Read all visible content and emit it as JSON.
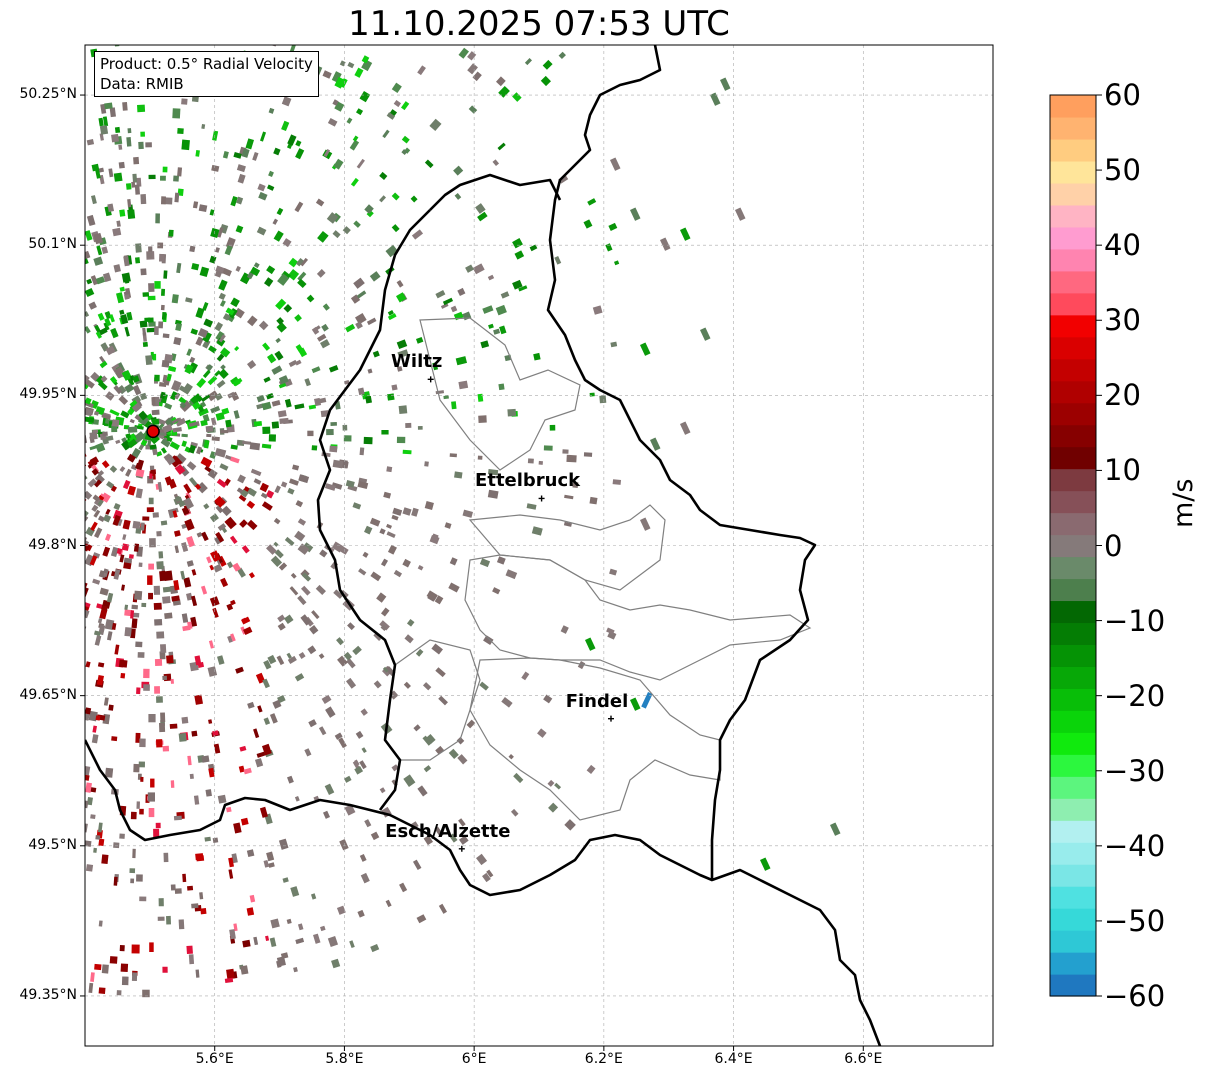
{
  "title": "11.10.2025 07:53 UTC",
  "info": {
    "product": "Product: 0.5° Radial Velocity",
    "source": "Data: RMIB"
  },
  "map": {
    "lon_range": [
      5.4,
      6.8
    ],
    "lat_range": [
      49.3,
      50.3
    ],
    "lat_ticks": [
      {
        "value": 50.25,
        "label": "50.25°N"
      },
      {
        "value": 50.1,
        "label": "50.1°N"
      },
      {
        "value": 49.95,
        "label": "49.95°N"
      },
      {
        "value": 49.8,
        "label": "49.8°N"
      },
      {
        "value": 49.65,
        "label": "49.65°N"
      },
      {
        "value": 49.5,
        "label": "49.5°N"
      },
      {
        "value": 49.35,
        "label": "49.35°N"
      }
    ],
    "lon_ticks": [
      {
        "value": 5.6,
        "label": "5.6°E"
      },
      {
        "value": 5.8,
        "label": "5.8°E"
      },
      {
        "value": 6.0,
        "label": "6°E"
      },
      {
        "value": 6.2,
        "label": "6.2°E"
      },
      {
        "value": 6.4,
        "label": "6.4°E"
      },
      {
        "value": 6.6,
        "label": "6.6°E"
      }
    ],
    "gridlines": true,
    "radar_site": {
      "lon": 5.505,
      "lat": 49.914
    },
    "cities": [
      {
        "name": "Wiltz",
        "lon": 5.933,
        "lat": 49.966
      },
      {
        "name": "Ettelbruck",
        "lon": 6.104,
        "lat": 49.847
      },
      {
        "name": "Findel",
        "lon": 6.211,
        "lat": 49.627
      },
      {
        "name": "Esch/Alzette",
        "lon": 5.981,
        "lat": 49.497
      }
    ]
  },
  "colorbar": {
    "unit": "m/s",
    "range": [
      -60,
      60
    ],
    "ticks": [
      {
        "value": 60,
        "label": "60"
      },
      {
        "value": 50,
        "label": "50"
      },
      {
        "value": 40,
        "label": "40"
      },
      {
        "value": 30,
        "label": "30"
      },
      {
        "value": 20,
        "label": "20"
      },
      {
        "value": 10,
        "label": "10"
      },
      {
        "value": 0,
        "label": "0"
      },
      {
        "value": -10,
        "label": "−10"
      },
      {
        "value": -20,
        "label": "−20"
      },
      {
        "value": -30,
        "label": "−30"
      },
      {
        "value": -40,
        "label": "−40"
      },
      {
        "value": -50,
        "label": "−50"
      },
      {
        "value": -60,
        "label": "−60"
      }
    ],
    "colors": [
      "#1f78c0",
      "#23a0cf",
      "#2ec8d6",
      "#36d9d9",
      "#4fe1e1",
      "#7ae6e6",
      "#98ecec",
      "#b2f0f0",
      "#8eeeb0",
      "#5cf57e",
      "#2cf73e",
      "#10ea0d",
      "#0ad40a",
      "#08be08",
      "#07a807",
      "#059305",
      "#047d04",
      "#036803",
      "#4d7f4d",
      "#6a8a6a",
      "#857a7a",
      "#8a6a70",
      "#865058",
      "#7d3a40",
      "#700000",
      "#860000",
      "#9c0000",
      "#b00000",
      "#c40000",
      "#da0000",
      "#f20000",
      "#ff4a5c",
      "#ff6880",
      "#ff84b0",
      "#ff9cd0",
      "#ffb4c4",
      "#ffd1a8",
      "#ffe59a",
      "#ffcc80",
      "#ffb370",
      "#ff9f5e"
    ]
  }
}
